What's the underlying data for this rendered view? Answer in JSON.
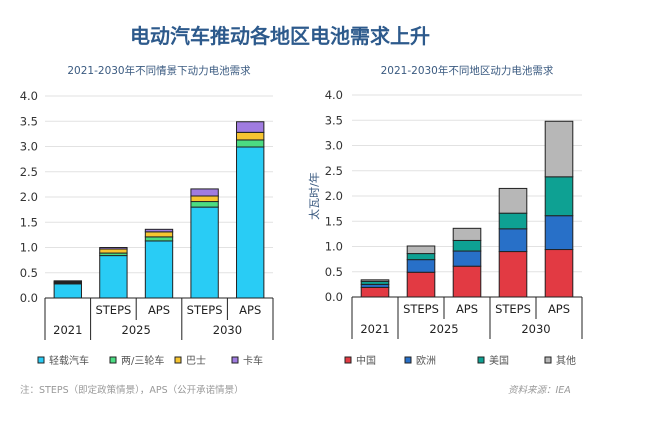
{
  "title": "电动汽车推动各地区电池需求上升",
  "chart_data": [
    {
      "type": "bar",
      "stacked": true,
      "title": "2021-2030年不同情景下动力电池需求",
      "ylabel": "太瓦时/年",
      "ylim": [
        0,
        4.0
      ],
      "yticks": [
        "0.0",
        "0.5",
        "1.0",
        "1.5",
        "2.0",
        "2.5",
        "3.0",
        "3.5",
        "4.0"
      ],
      "grid": true,
      "legend_position": "bottom",
      "categories": [
        {
          "scenario": "",
          "year": "2021"
        },
        {
          "scenario": "STEPS",
          "year": "2025"
        },
        {
          "scenario": "APS",
          "year": "2025"
        },
        {
          "scenario": "STEPS",
          "year": "2030"
        },
        {
          "scenario": "APS",
          "year": "2030"
        }
      ],
      "year_groups": [
        "2021",
        "2025",
        "2030"
      ],
      "series": [
        {
          "name": "轻载汽车",
          "color": "#29ccf5",
          "values": [
            0.28,
            0.84,
            1.13,
            1.8,
            2.99
          ]
        },
        {
          "name": "两/三轮车",
          "color": "#4bdc82",
          "values": [
            0.02,
            0.05,
            0.08,
            0.11,
            0.14
          ]
        },
        {
          "name": "巴士",
          "color": "#f7c531",
          "values": [
            0.02,
            0.08,
            0.1,
            0.11,
            0.15
          ]
        },
        {
          "name": "卡车",
          "color": "#a07ce0",
          "values": [
            0.02,
            0.03,
            0.05,
            0.14,
            0.21
          ]
        }
      ]
    },
    {
      "type": "bar",
      "stacked": true,
      "title": "2021-2030年不同地区动力电池需求",
      "ylabel": "太瓦时/年",
      "ylim": [
        0,
        4.0
      ],
      "yticks": [
        "0.0",
        "0.5",
        "1.0",
        "1.5",
        "2.0",
        "2.5",
        "3.0",
        "3.5",
        "4.0"
      ],
      "grid": true,
      "legend_position": "bottom",
      "categories": [
        {
          "scenario": "",
          "year": "2021"
        },
        {
          "scenario": "STEPS",
          "year": "2025"
        },
        {
          "scenario": "APS",
          "year": "2025"
        },
        {
          "scenario": "STEPS",
          "year": "2030"
        },
        {
          "scenario": "APS",
          "year": "2030"
        }
      ],
      "year_groups": [
        "2021",
        "2025",
        "2030"
      ],
      "series": [
        {
          "name": "中国",
          "color": "#e23a43",
          "values": [
            0.19,
            0.49,
            0.61,
            0.9,
            0.94
          ]
        },
        {
          "name": "欧洲",
          "color": "#2870c8",
          "values": [
            0.06,
            0.25,
            0.3,
            0.45,
            0.67
          ]
        },
        {
          "name": "美国",
          "color": "#0ea193",
          "values": [
            0.06,
            0.12,
            0.21,
            0.31,
            0.77
          ]
        },
        {
          "name": "其他",
          "color": "#b7b7b7",
          "values": [
            0.03,
            0.15,
            0.24,
            0.49,
            1.1
          ]
        }
      ]
    }
  ],
  "note": "注：STEPS（即定政策情景），APS（公开承诺情景）",
  "source": "资料来源：IEA"
}
